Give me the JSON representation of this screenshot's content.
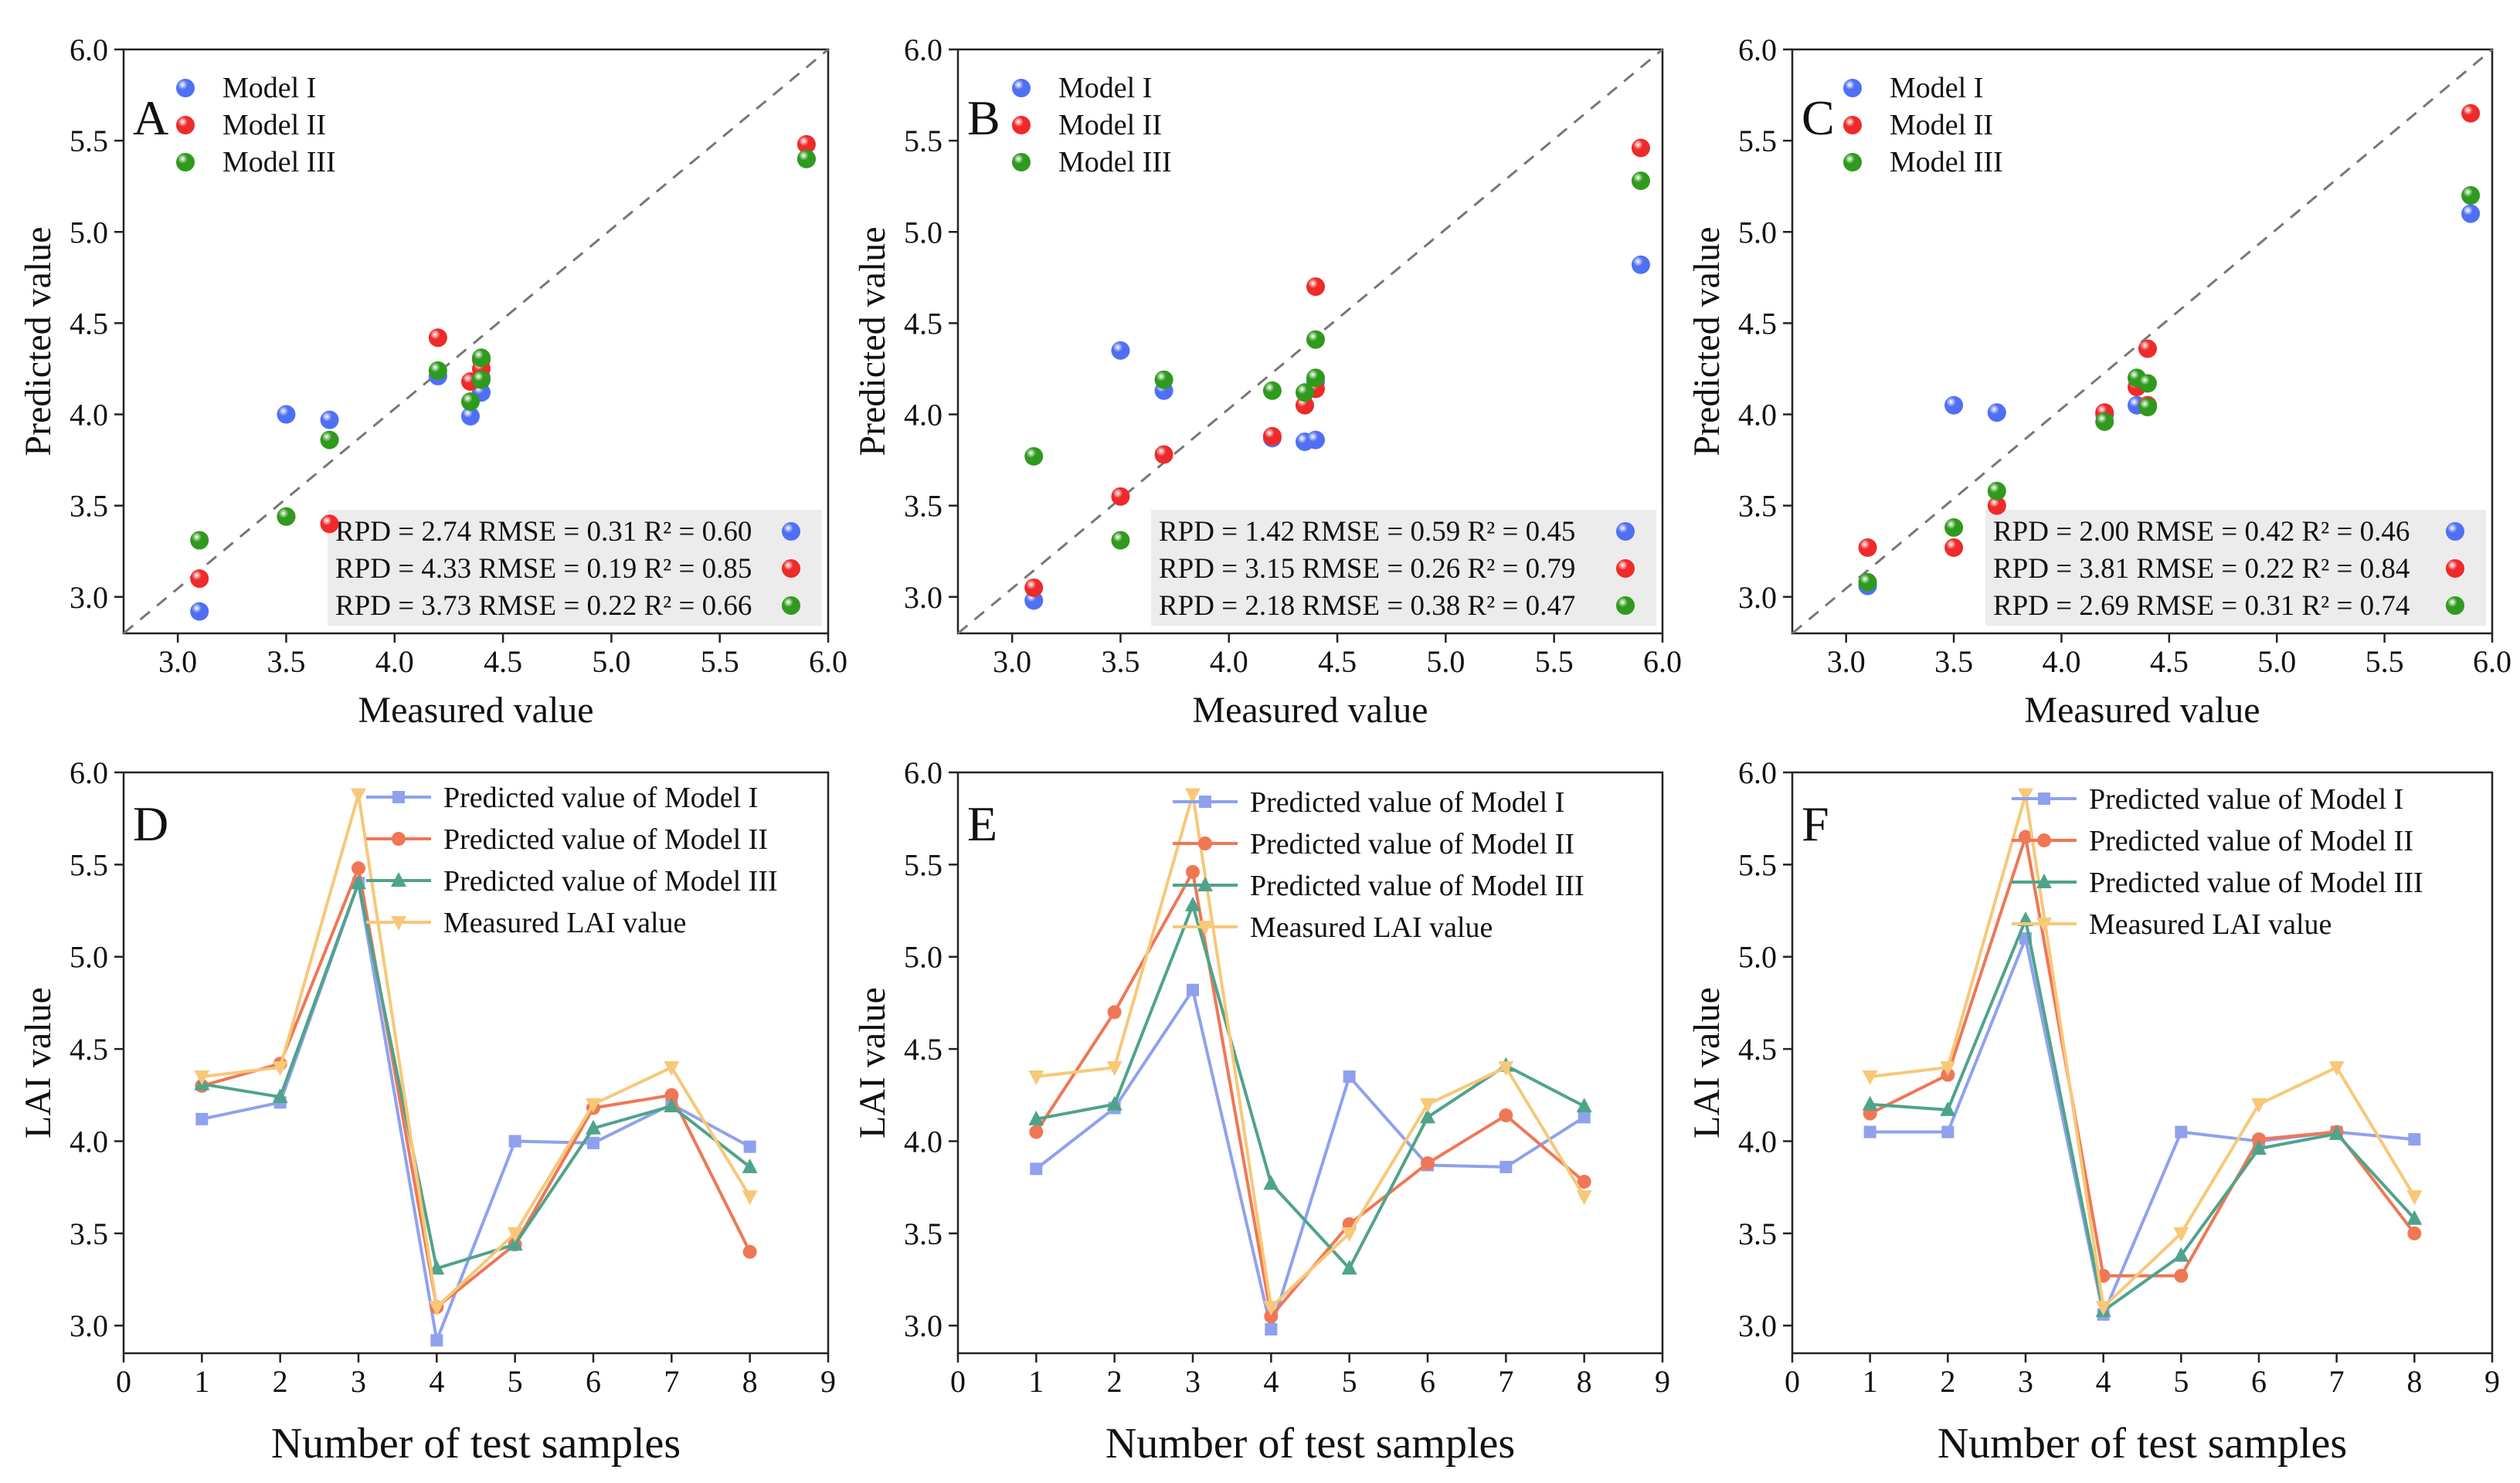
{
  "figure": {
    "colors": {
      "model1": "#4f6ff5",
      "model2": "#ee2a2a",
      "model3": "#2f9a1d",
      "line_model1": "#8fa1ee",
      "line_model2": "#ef7755",
      "line_model3": "#4fa38b",
      "line_measured": "#f7c878",
      "stats_bg": "#ececec",
      "diag": "#777777"
    }
  },
  "chart_data": [
    {
      "panel": "A",
      "type": "scatter",
      "xlabel": "Measured value",
      "ylabel": "Predicted value",
      "xlim": [
        2.75,
        6.0
      ],
      "ylim": [
        2.8,
        6.0
      ],
      "xticks": [
        "3.0",
        "3.5",
        "4.0",
        "4.5",
        "5.0",
        "5.5",
        "6.0"
      ],
      "yticks": [
        "3.0",
        "3.5",
        "4.0",
        "4.5",
        "5.0",
        "5.5",
        "6.0"
      ],
      "diagonal": true,
      "legend": [
        "Model I",
        "Model II",
        "Model III"
      ],
      "series": [
        {
          "name": "Model I",
          "x": [
            4.4,
            4.2,
            5.9,
            3.1,
            3.5,
            4.35,
            4.4,
            3.7
          ],
          "y": [
            4.12,
            4.21,
            5.4,
            2.92,
            4.0,
            3.99,
            4.2,
            3.97
          ]
        },
        {
          "name": "Model II",
          "x": [
            4.4,
            4.2,
            5.9,
            3.1,
            3.5,
            4.35,
            4.4,
            3.7
          ],
          "y": [
            4.3,
            4.42,
            5.48,
            3.1,
            3.44,
            4.18,
            4.25,
            3.4
          ]
        },
        {
          "name": "Model III",
          "x": [
            4.4,
            4.2,
            5.9,
            3.1,
            3.5,
            4.35,
            4.4,
            3.7
          ],
          "y": [
            4.31,
            4.24,
            5.4,
            3.31,
            3.44,
            4.07,
            4.19,
            3.86
          ]
        }
      ],
      "stats": [
        {
          "text": "RPD = 2.74   RMSE = 0.31   R² = 0.60"
        },
        {
          "text": "RPD = 4.33   RMSE = 0.19   R² = 0.85"
        },
        {
          "text": "RPD = 3.73   RMSE = 0.22   R² = 0.66"
        }
      ]
    },
    {
      "panel": "B",
      "type": "scatter",
      "xlabel": "Measured value",
      "ylabel": "Predicted value",
      "xlim": [
        2.75,
        6.0
      ],
      "ylim": [
        2.8,
        6.0
      ],
      "xticks": [
        "3.0",
        "3.5",
        "4.0",
        "4.5",
        "5.0",
        "5.5",
        "6.0"
      ],
      "yticks": [
        "3.0",
        "3.5",
        "4.0",
        "4.5",
        "5.0",
        "5.5",
        "6.0"
      ],
      "diagonal": true,
      "legend": [
        "Model I",
        "Model II",
        "Model III"
      ],
      "series": [
        {
          "name": "Model I",
          "x": [
            4.35,
            4.4,
            5.9,
            3.1,
            3.5,
            4.2,
            4.4,
            3.7
          ],
          "y": [
            3.85,
            4.18,
            4.82,
            2.98,
            4.35,
            3.87,
            3.86,
            4.13
          ]
        },
        {
          "name": "Model II",
          "x": [
            4.35,
            4.4,
            5.9,
            3.1,
            3.5,
            4.2,
            4.4,
            3.7
          ],
          "y": [
            4.05,
            4.7,
            5.46,
            3.05,
            3.55,
            3.88,
            4.14,
            3.78
          ]
        },
        {
          "name": "Model III",
          "x": [
            4.35,
            4.4,
            5.9,
            3.1,
            3.5,
            4.2,
            4.4,
            3.7
          ],
          "y": [
            4.12,
            4.2,
            5.28,
            3.77,
            3.31,
            4.13,
            4.41,
            4.19
          ]
        }
      ],
      "stats": [
        {
          "text": "RPD = 1.42   RMSE = 0.59   R² = 0.45"
        },
        {
          "text": "RPD = 3.15   RMSE = 0.26   R² = 0.79"
        },
        {
          "text": "RPD = 2.18   RMSE = 0.38   R² = 0.47"
        }
      ]
    },
    {
      "panel": "C",
      "type": "scatter",
      "xlabel": "Measured value",
      "ylabel": "Predicted value",
      "xlim": [
        2.75,
        6.0
      ],
      "ylim": [
        2.8,
        6.0
      ],
      "xticks": [
        "3.0",
        "3.5",
        "4.0",
        "4.5",
        "5.0",
        "5.5",
        "6.0"
      ],
      "yticks": [
        "3.0",
        "3.5",
        "4.0",
        "4.5",
        "5.0",
        "5.5",
        "6.0"
      ],
      "diagonal": true,
      "legend": [
        "Model I",
        "Model II",
        "Model III"
      ],
      "series": [
        {
          "name": "Model I",
          "x": [
            4.35,
            4.4,
            5.9,
            3.1,
            3.5,
            4.2,
            4.4,
            3.7
          ],
          "y": [
            4.05,
            4.05,
            5.1,
            3.06,
            4.05,
            4.0,
            4.05,
            4.01
          ]
        },
        {
          "name": "Model II",
          "x": [
            4.35,
            4.4,
            5.9,
            3.1,
            3.5,
            4.2,
            4.4,
            3.7
          ],
          "y": [
            4.15,
            4.36,
            5.65,
            3.27,
            3.27,
            4.01,
            4.05,
            3.5
          ]
        },
        {
          "name": "Model III",
          "x": [
            4.35,
            4.4,
            5.9,
            3.1,
            3.5,
            4.2,
            4.4,
            3.7
          ],
          "y": [
            4.2,
            4.17,
            5.2,
            3.08,
            3.38,
            3.96,
            4.04,
            3.58
          ]
        }
      ],
      "stats": [
        {
          "text": "RPD = 2.00   RMSE = 0.42   R² = 0.46"
        },
        {
          "text": "RPD = 3.81   RMSE = 0.22   R² = 0.84"
        },
        {
          "text": "RPD = 2.69   RMSE = 0.31   R² = 0.74"
        }
      ]
    },
    {
      "panel": "D",
      "type": "line",
      "xlabel": "Number of test samples",
      "ylabel": "LAI value",
      "xlim": [
        0,
        9
      ],
      "ylim": [
        2.85,
        6.0
      ],
      "xticks": [
        "0",
        "1",
        "2",
        "3",
        "4",
        "5",
        "6",
        "7",
        "8",
        "9"
      ],
      "yticks": [
        "3.0",
        "3.5",
        "4.0",
        "4.5",
        "5.0",
        "5.5",
        "6.0"
      ],
      "x": [
        1,
        2,
        3,
        4,
        5,
        6,
        7,
        8
      ],
      "series": [
        {
          "name": "Predicted value of Model I",
          "values": [
            4.12,
            4.21,
            5.4,
            2.92,
            4.0,
            3.99,
            4.2,
            3.97
          ]
        },
        {
          "name": "Predicted value of Model II",
          "values": [
            4.3,
            4.42,
            5.48,
            3.1,
            3.44,
            4.18,
            4.25,
            3.4
          ]
        },
        {
          "name": "Predicted value of Model III",
          "values": [
            4.31,
            4.24,
            5.4,
            3.31,
            3.44,
            4.07,
            4.19,
            3.86
          ]
        },
        {
          "name": "Measured LAI value",
          "values": [
            4.35,
            4.4,
            5.88,
            3.1,
            3.5,
            4.2,
            4.4,
            3.7
          ]
        }
      ]
    },
    {
      "panel": "E",
      "type": "line",
      "xlabel": "Number of test samples",
      "ylabel": "LAI value",
      "xlim": [
        0,
        9
      ],
      "ylim": [
        2.85,
        6.0
      ],
      "xticks": [
        "0",
        "1",
        "2",
        "3",
        "4",
        "5",
        "6",
        "7",
        "8",
        "9"
      ],
      "yticks": [
        "3.0",
        "3.5",
        "4.0",
        "4.5",
        "5.0",
        "5.5",
        "6.0"
      ],
      "x": [
        1,
        2,
        3,
        4,
        5,
        6,
        7,
        8
      ],
      "series": [
        {
          "name": "Predicted value of Model I",
          "values": [
            3.85,
            4.18,
            4.82,
            2.98,
            4.35,
            3.87,
            3.86,
            4.13
          ]
        },
        {
          "name": "Predicted value of Model II",
          "values": [
            4.05,
            4.7,
            5.46,
            3.05,
            3.55,
            3.88,
            4.14,
            3.78
          ]
        },
        {
          "name": "Predicted value of Model III",
          "values": [
            4.12,
            4.2,
            5.28,
            3.77,
            3.31,
            4.13,
            4.41,
            4.19
          ]
        },
        {
          "name": "Measured LAI value",
          "values": [
            4.35,
            4.4,
            5.88,
            3.1,
            3.5,
            4.2,
            4.4,
            3.7
          ]
        }
      ]
    },
    {
      "panel": "F",
      "type": "line",
      "xlabel": "Number of test samples",
      "ylabel": "LAI value",
      "xlim": [
        0,
        9
      ],
      "ylim": [
        2.85,
        6.0
      ],
      "xticks": [
        "0",
        "1",
        "2",
        "3",
        "4",
        "5",
        "6",
        "7",
        "8",
        "9"
      ],
      "yticks": [
        "3.0",
        "3.5",
        "4.0",
        "4.5",
        "5.0",
        "5.5",
        "6.0"
      ],
      "x": [
        1,
        2,
        3,
        4,
        5,
        6,
        7,
        8
      ],
      "series": [
        {
          "name": "Predicted value of Model I",
          "values": [
            4.05,
            4.05,
            5.1,
            3.06,
            4.05,
            4.0,
            4.05,
            4.01
          ]
        },
        {
          "name": "Predicted value of Model II",
          "values": [
            4.15,
            4.36,
            5.65,
            3.27,
            3.27,
            4.01,
            4.05,
            3.5
          ]
        },
        {
          "name": "Predicted value of Model III",
          "values": [
            4.2,
            4.17,
            5.2,
            3.08,
            3.38,
            3.96,
            4.04,
            3.58
          ]
        },
        {
          "name": "Measured LAI value",
          "values": [
            4.35,
            4.4,
            5.88,
            3.1,
            3.5,
            4.2,
            4.4,
            3.7
          ]
        }
      ]
    }
  ]
}
